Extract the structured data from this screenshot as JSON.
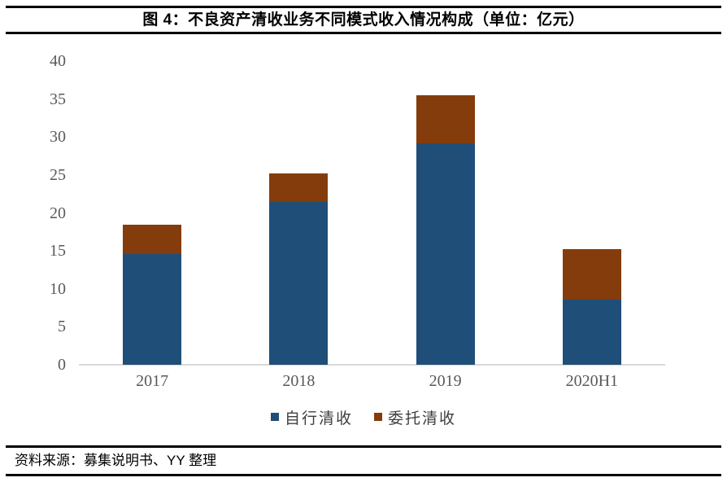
{
  "header": {
    "title": "图 4：不良资产清收业务不同模式收入情况构成（单位：亿元）"
  },
  "footer": {
    "source": "资料来源：募集说明书、YY 整理"
  },
  "chart_data": {
    "type": "bar",
    "stacked": true,
    "title": "图 4：不良资产清收业务不同模式收入情况构成（单位：亿元）",
    "unit_label": "亿元",
    "categories": [
      "2017",
      "2018",
      "2019",
      "2020H1"
    ],
    "series": [
      {
        "name": "自行清收",
        "color": "#1F4E79",
        "values": [
          14.6,
          21.4,
          29.2,
          8.6
        ]
      },
      {
        "name": "委托清收",
        "color": "#843C0C",
        "values": [
          3.9,
          3.8,
          6.3,
          6.6
        ]
      }
    ],
    "stack_totals": [
      18.5,
      25.2,
      35.5,
      15.2
    ],
    "ylim": [
      0,
      40
    ],
    "yticks": [
      0,
      5,
      10,
      15,
      20,
      25,
      30,
      35,
      40
    ],
    "grid": false,
    "legend_position": "bottom",
    "axis_line_color": "#D9D9D9",
    "tick_label_color": "#595959",
    "legend_text_color": "#3F3F3F"
  }
}
